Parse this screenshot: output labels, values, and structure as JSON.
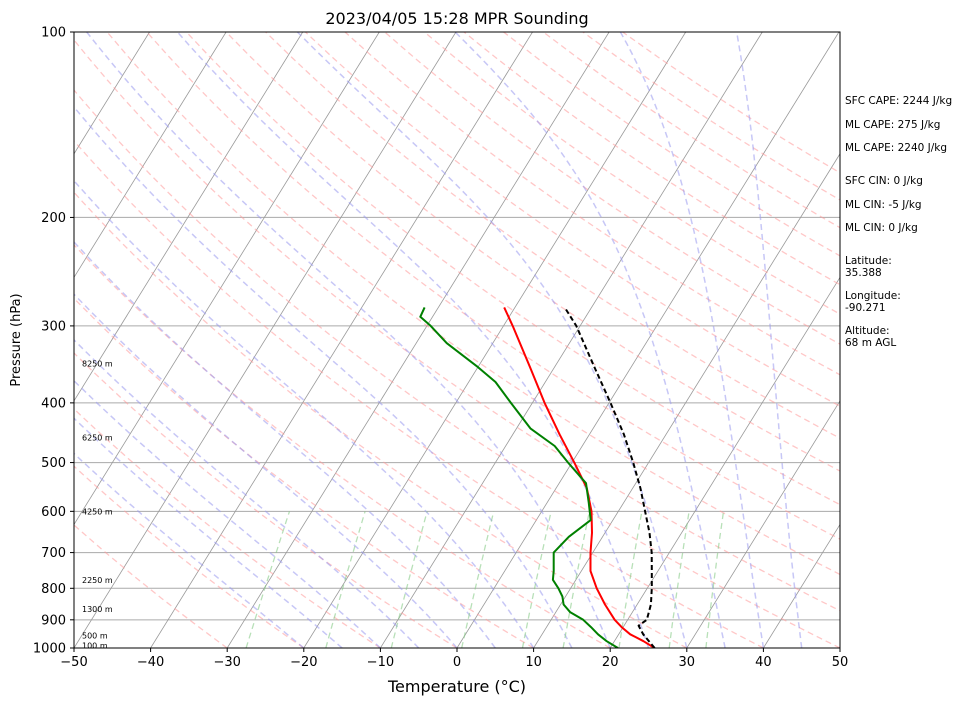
{
  "chart_data": {
    "type": "line",
    "title": "2023/04/05 15:28 MPR Sounding",
    "xlabel": "Temperature (°C)",
    "ylabel": "Pressure (hPa)",
    "xlim": [
      -50,
      50
    ],
    "ylim": [
      1000,
      100
    ],
    "y_scale": "log",
    "skew": "skew-T",
    "grid": true,
    "x_ticks": [
      -50,
      -40,
      -30,
      -20,
      -10,
      0,
      10,
      20,
      30,
      40,
      50
    ],
    "x_tick_labels": [
      "−50",
      "−40",
      "−30",
      "−20",
      "−10",
      "0",
      "10",
      "20",
      "30",
      "40",
      "50"
    ],
    "y_ticks": [
      100,
      200,
      300,
      400,
      500,
      600,
      700,
      800,
      900,
      1000
    ],
    "y_tick_labels": [
      "100",
      "200",
      "300",
      "400",
      "500",
      "600",
      "700",
      "800",
      "900",
      "1000"
    ],
    "height_labels": [
      {
        "p": 990,
        "label": "100 m"
      },
      {
        "p": 955,
        "label": "500 m"
      },
      {
        "p": 865,
        "label": "1300 m"
      },
      {
        "p": 775,
        "label": "2250 m"
      },
      {
        "p": 600,
        "label": "4250 m"
      },
      {
        "p": 455,
        "label": "6250 m"
      },
      {
        "p": 345,
        "label": "8250 m"
      }
    ],
    "series": [
      {
        "color": "#ff0000",
        "points": [
          [
            1000,
            25.8
          ],
          [
            975,
            23.8
          ],
          [
            950,
            21.5
          ],
          [
            925,
            19.8
          ],
          [
            900,
            18.3
          ],
          [
            850,
            15.8
          ],
          [
            800,
            13.4
          ],
          [
            750,
            11.2
          ],
          [
            700,
            9.7
          ],
          [
            650,
            8.3
          ],
          [
            600,
            6.5
          ],
          [
            550,
            4.0
          ],
          [
            500,
            0.3
          ],
          [
            450,
            -3.9
          ],
          [
            400,
            -8.4
          ],
          [
            350,
            -13.2
          ],
          [
            300,
            -18.8
          ],
          [
            280,
            -21.4
          ]
        ]
      },
      {
        "color": "#008000",
        "points": [
          [
            1000,
            21.0
          ],
          [
            975,
            19.0
          ],
          [
            950,
            17.3
          ],
          [
            925,
            15.8
          ],
          [
            900,
            14.2
          ],
          [
            875,
            11.9
          ],
          [
            850,
            10.4
          ],
          [
            825,
            9.6
          ],
          [
            800,
            8.4
          ],
          [
            775,
            7.0
          ],
          [
            750,
            6.4
          ],
          [
            700,
            4.9
          ],
          [
            660,
            5.6
          ],
          [
            620,
            7.1
          ],
          [
            580,
            5.4
          ],
          [
            540,
            3.5
          ],
          [
            500,
            -0.5
          ],
          [
            470,
            -3.6
          ],
          [
            440,
            -8.2
          ],
          [
            400,
            -12.8
          ],
          [
            370,
            -16.5
          ],
          [
            350,
            -20.0
          ],
          [
            320,
            -26.0
          ],
          [
            300,
            -29.5
          ],
          [
            290,
            -31.6
          ],
          [
            280,
            -31.8
          ]
        ]
      },
      {
        "color": "#000000",
        "dashed": true,
        "points": [
          [
            1000,
            25.8
          ],
          [
            950,
            23.2
          ],
          [
            920,
            21.9
          ],
          [
            900,
            22.5
          ],
          [
            850,
            21.8
          ],
          [
            800,
            20.6
          ],
          [
            750,
            19.2
          ],
          [
            700,
            17.7
          ],
          [
            650,
            15.8
          ],
          [
            600,
            13.5
          ],
          [
            550,
            11.0
          ],
          [
            500,
            8.0
          ],
          [
            450,
            4.5
          ],
          [
            400,
            0.2
          ],
          [
            350,
            -4.8
          ],
          [
            300,
            -10.5
          ],
          [
            280,
            -13.5
          ]
        ]
      }
    ],
    "annotations": [
      "SFC CAPE: 2244 J/kg",
      "ML CAPE: 275 J/kg",
      "ML CAPE: 2240 J/kg",
      "SFC CIN: 0 J/kg",
      "ML CIN: -5 J/kg",
      "ML CIN: 0 J/kg",
      "Latitude:",
      "35.388",
      "Longitude:",
      "-90.271",
      "Altitude:",
      "68 m AGL"
    ],
    "colors": {
      "dry_adiabats": "#ff9999",
      "moist_adiabats": "#9999ee",
      "mixing_ratio": "#88cc88",
      "isotherms": "#999999"
    }
  }
}
